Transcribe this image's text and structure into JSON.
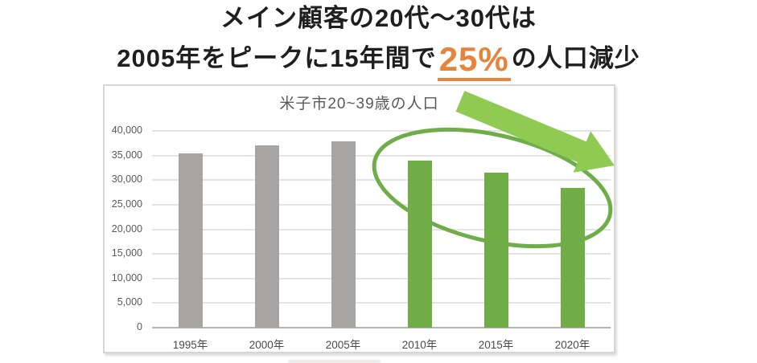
{
  "title": {
    "line1": "メイン顧客の20代～30代は",
    "line2_pre": "2005年をピークに15年間で",
    "line2_highlight": "25%",
    "line2_post": "の人口減少",
    "highlight_color": "#e7833a"
  },
  "chart_data": {
    "type": "bar",
    "title": "米子市20~39歳の人口",
    "categories": [
      "1995年",
      "2000年",
      "2005年",
      "2010年",
      "2015年",
      "2020年"
    ],
    "values": [
      35400,
      37100,
      37800,
      33900,
      31500,
      28400
    ],
    "bar_colors": [
      "#a7a4a4",
      "#a7a4a4",
      "#a7a4a4",
      "#70ad47",
      "#70ad47",
      "#70ad47"
    ],
    "xlabel": "",
    "ylabel": "",
    "ylim": [
      0,
      40000
    ],
    "ytick_step": 5000,
    "grid": true,
    "legend": false,
    "text_color": "#595959",
    "gridline_color": "#e6e4e3",
    "axisline_color": "#b5b2b1",
    "annotations": {
      "highlight_ellipse_color": "#6fad49",
      "decline_arrow_color": "#8fca52"
    }
  }
}
